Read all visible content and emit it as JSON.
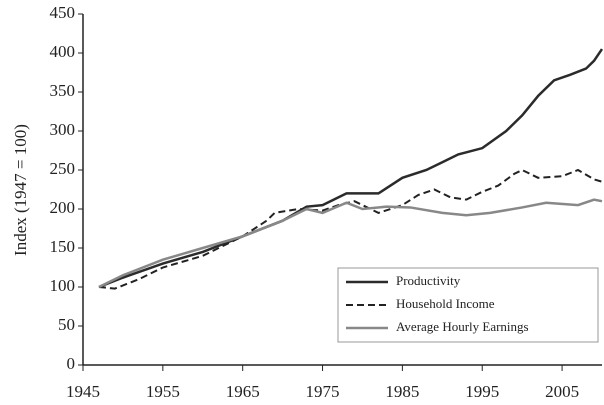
{
  "chart_data": {
    "type": "line",
    "y_label": "Index (1947 = 100)",
    "xlim": [
      1945,
      2010
    ],
    "xticks": [
      1945,
      1955,
      1965,
      1975,
      1985,
      1995,
      2005
    ],
    "ylim": [
      0,
      450
    ],
    "yticks": [
      0,
      50,
      100,
      150,
      200,
      250,
      300,
      350,
      400,
      450
    ],
    "grid": false,
    "legend": "lower right",
    "series": [
      {
        "name": "Productivity",
        "color": "#2b2b2b",
        "dash": false,
        "x": [
          1947,
          1950,
          1955,
          1960,
          1965,
          1970,
          1973,
          1975,
          1978,
          1980,
          1982,
          1985,
          1988,
          1990,
          1992,
          1995,
          1998,
          2000,
          2002,
          2004,
          2006,
          2008,
          2009,
          2010
        ],
        "values": [
          100,
          112,
          130,
          145,
          165,
          185,
          203,
          205,
          220,
          220,
          220,
          240,
          250,
          260,
          270,
          278,
          300,
          320,
          345,
          365,
          372,
          380,
          390,
          405
        ]
      },
      {
        "name": "Household Income",
        "color": "#222222",
        "dash": true,
        "x": [
          1947,
          1949,
          1952,
          1955,
          1960,
          1965,
          1968,
          1969,
          1972,
          1975,
          1977,
          1979,
          1982,
          1985,
          1987,
          1989,
          1991,
          1993,
          1995,
          1997,
          1999,
          2000,
          2002,
          2005,
          2007,
          2009,
          2010
        ],
        "values": [
          100,
          98,
          110,
          125,
          140,
          165,
          185,
          195,
          200,
          198,
          205,
          210,
          195,
          205,
          218,
          225,
          215,
          212,
          222,
          230,
          245,
          250,
          240,
          242,
          250,
          238,
          235
        ]
      },
      {
        "name": "Average Hourly Earnings",
        "color": "#888888",
        "dash": false,
        "x": [
          1947,
          1950,
          1955,
          1960,
          1965,
          1970,
          1973,
          1975,
          1978,
          1980,
          1983,
          1986,
          1990,
          1993,
          1996,
          2000,
          2003,
          2007,
          2009,
          2010
        ],
        "values": [
          100,
          115,
          135,
          150,
          165,
          185,
          200,
          195,
          208,
          200,
          203,
          202,
          195,
          192,
          195,
          202,
          208,
          205,
          212,
          210
        ]
      }
    ]
  }
}
